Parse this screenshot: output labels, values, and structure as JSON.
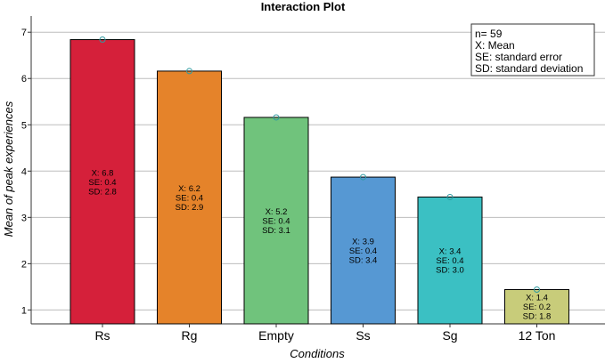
{
  "chart_data": {
    "type": "bar",
    "title": "Interaction Plot",
    "xlabel": "Conditions",
    "ylabel": "Mean of peak experiences",
    "ylim": [
      0.7,
      7.35
    ],
    "yticks": [
      1,
      2,
      3,
      4,
      5,
      6,
      7
    ],
    "grid": true,
    "categories": [
      "Rs",
      "Rg",
      "Empty",
      "Ss",
      "Sg",
      "12 Ton"
    ],
    "values": [
      6.84,
      6.16,
      5.16,
      3.87,
      3.44,
      1.44
    ],
    "stats": [
      {
        "x": "X: 6.8",
        "se": "SE: 0.4",
        "sd": "SD: 2.8"
      },
      {
        "x": "X: 6.2",
        "se": "SE: 0.4",
        "sd": "SD: 2.9"
      },
      {
        "x": "X: 5.2",
        "se": "SE: 0.4",
        "sd": "SD: 3.1"
      },
      {
        "x": "X: 3.9",
        "se": "SE: 0.4",
        "sd": "SD: 3.4"
      },
      {
        "x": "X: 3.4",
        "se": "SE: 0.4",
        "sd": "SD: 3.0"
      },
      {
        "x": "X: 1.4",
        "se": "SE: 0.2",
        "sd": "SD: 1.8"
      }
    ],
    "colors": [
      "#d5203a",
      "#e5832a",
      "#70c37c",
      "#5698d3",
      "#3bc0c3",
      "#c8cc7a"
    ],
    "marker_color": "#2f9aa0",
    "legend": {
      "placement": "top-right",
      "lines": [
        "n= 59",
        "X: Mean",
        "SE: standard error",
        "SD: standard deviation"
      ]
    }
  }
}
